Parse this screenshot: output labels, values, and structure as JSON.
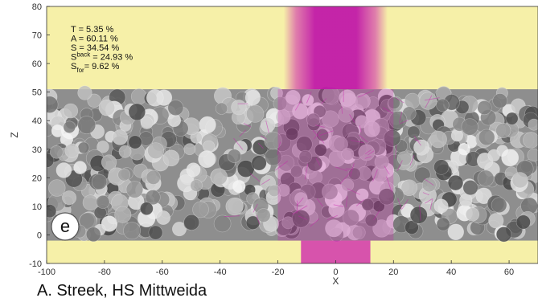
{
  "chart_data": {
    "type": "scatter",
    "xlabel": "X",
    "ylabel": "Z",
    "xlim": [
      -100,
      70
    ],
    "ylim": [
      -10,
      80
    ],
    "x_ticks": [
      -100,
      -80,
      -60,
      -40,
      -20,
      0,
      20,
      40,
      60
    ],
    "y_ticks": [
      -10,
      0,
      10,
      20,
      30,
      40,
      50,
      60,
      70,
      80
    ],
    "grid": false,
    "colors": {
      "background": "#f6f0a8",
      "beam": "#cc1fae",
      "particle": "#d9d9d9",
      "particle_dark": "#555555"
    },
    "stats": [
      {
        "main": "T = 5.35 %"
      },
      {
        "main": "A = 60.11 %"
      },
      {
        "main": "S = 34.54 %"
      },
      {
        "main": "S",
        "sup": "back",
        "rest": " = 24.93 %"
      },
      {
        "main": "S",
        "sub": "for",
        "rest": "= 9.62 %"
      }
    ],
    "panel_label": "e",
    "layer": {
      "z_bottom": -2,
      "z_top": 51
    },
    "beam": {
      "x_center": 0,
      "width": 36
    }
  },
  "credit": "A. Streek, HS Mittweida"
}
